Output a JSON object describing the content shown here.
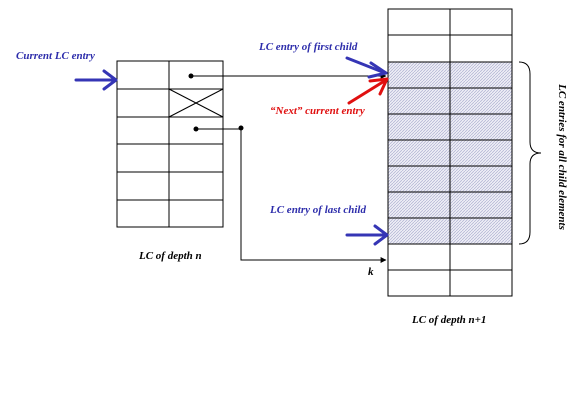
{
  "labels": {
    "current_lc_entry": "Current LC entry",
    "first_child": "LC entry of first child",
    "next_current": "“Next” current entry",
    "last_child": "LC entry of last child",
    "lc_depth_n": "LC of depth n",
    "lc_depth_n1": "LC of depth n+1",
    "k": "k",
    "child_entries": "LC entries for all child elements"
  },
  "colors": {
    "blue_label": "#2d2dab",
    "red_label": "#e01010",
    "blue_arrow": "#3535b5",
    "red_arrow": "#e01010",
    "hatch": "#c8c8de",
    "line": "#000000"
  }
}
